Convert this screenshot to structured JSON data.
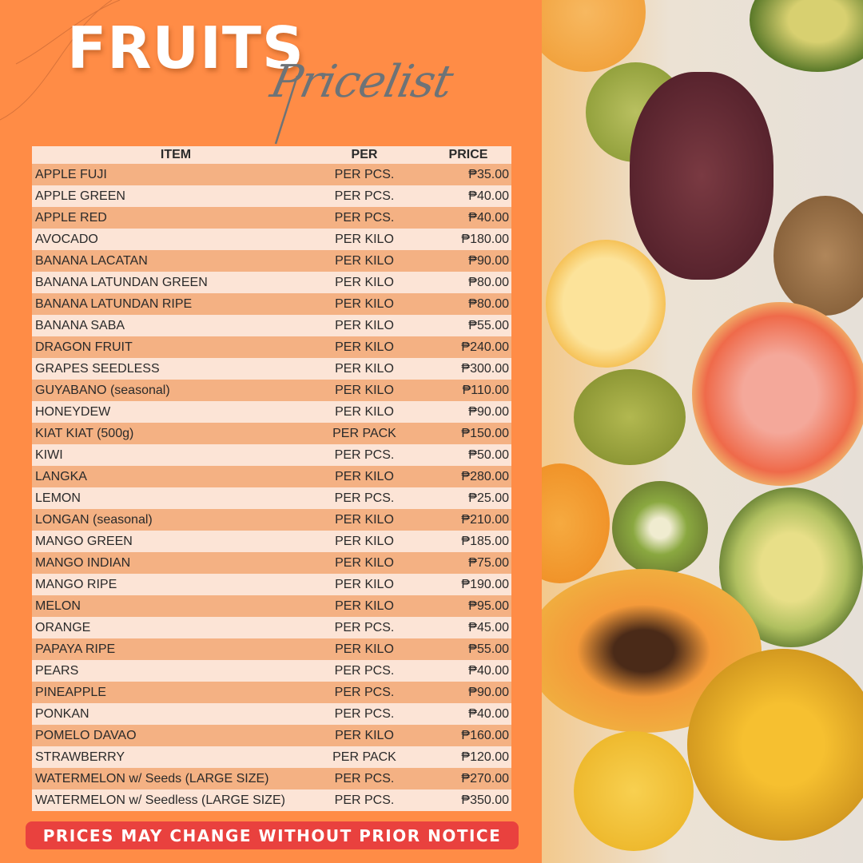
{
  "header": {
    "title": "FRUITS",
    "subtitle": "Pricelist"
  },
  "table": {
    "columns": [
      "ITEM",
      "PER",
      "PRICE"
    ],
    "rows": [
      [
        "APPLE FUJI",
        "PER PCS.",
        "₱35.00"
      ],
      [
        "APPLE GREEN",
        "PER PCS.",
        "₱40.00"
      ],
      [
        "APPLE RED",
        "PER PCS.",
        "₱40.00"
      ],
      [
        "AVOCADO",
        "PER KILO",
        "₱180.00"
      ],
      [
        "BANANA LACATAN",
        "PER KILO",
        "₱90.00"
      ],
      [
        "BANANA LATUNDAN GREEN",
        "PER KILO",
        "₱80.00"
      ],
      [
        "BANANA LATUNDAN RIPE",
        "PER KILO",
        "₱80.00"
      ],
      [
        "BANANA SABA",
        "PER KILO",
        "₱55.00"
      ],
      [
        "DRAGON FRUIT",
        "PER KILO",
        "₱240.00"
      ],
      [
        "GRAPES SEEDLESS",
        "PER KILO",
        "₱300.00"
      ],
      [
        "GUYABANO (seasonal)",
        "PER KILO",
        "₱110.00"
      ],
      [
        "HONEYDEW",
        "PER KILO",
        "₱90.00"
      ],
      [
        "KIAT KIAT (500g)",
        "PER PACK",
        "₱150.00"
      ],
      [
        "KIWI",
        "PER PCS.",
        "₱50.00"
      ],
      [
        "LANGKA",
        "PER KILO",
        "₱280.00"
      ],
      [
        "LEMON",
        "PER PCS.",
        "₱25.00"
      ],
      [
        "LONGAN (seasonal)",
        "PER KILO",
        "₱210.00"
      ],
      [
        "MANGO GREEN",
        "PER KILO",
        "₱185.00"
      ],
      [
        "MANGO INDIAN",
        "PER KILO",
        "₱75.00"
      ],
      [
        "MANGO RIPE",
        "PER KILO",
        "₱190.00"
      ],
      [
        "MELON",
        "PER KILO",
        "₱95.00"
      ],
      [
        "ORANGE",
        "PER PCS.",
        "₱45.00"
      ],
      [
        "PAPAYA RIPE",
        "PER KILO",
        "₱55.00"
      ],
      [
        "PEARS",
        "PER PCS.",
        "₱40.00"
      ],
      [
        "PINEAPPLE",
        "PER PCS.",
        "₱90.00"
      ],
      [
        "PONKAN",
        "PER PCS.",
        "₱40.00"
      ],
      [
        "POMELO DAVAO",
        "PER KILO",
        "₱160.00"
      ],
      [
        "STRAWBERRY",
        "PER PACK",
        "₱120.00"
      ],
      [
        "WATERMELON w/ Seeds  (LARGE SIZE)",
        "PER PCS.",
        "₱270.00"
      ],
      [
        "WATERMELON w/ Seedless  (LARGE SIZE)",
        "PER PCS.",
        "₱350.00"
      ]
    ]
  },
  "footer": {
    "notice": "PRICES MAY CHANGE WITHOUT PRIOR NOTICE"
  },
  "colors": {
    "background": "#FF8C46",
    "row_dark": "#F4B183",
    "row_light": "#FCE4D6",
    "notice": "#E9413E",
    "script": "#6D7377"
  }
}
